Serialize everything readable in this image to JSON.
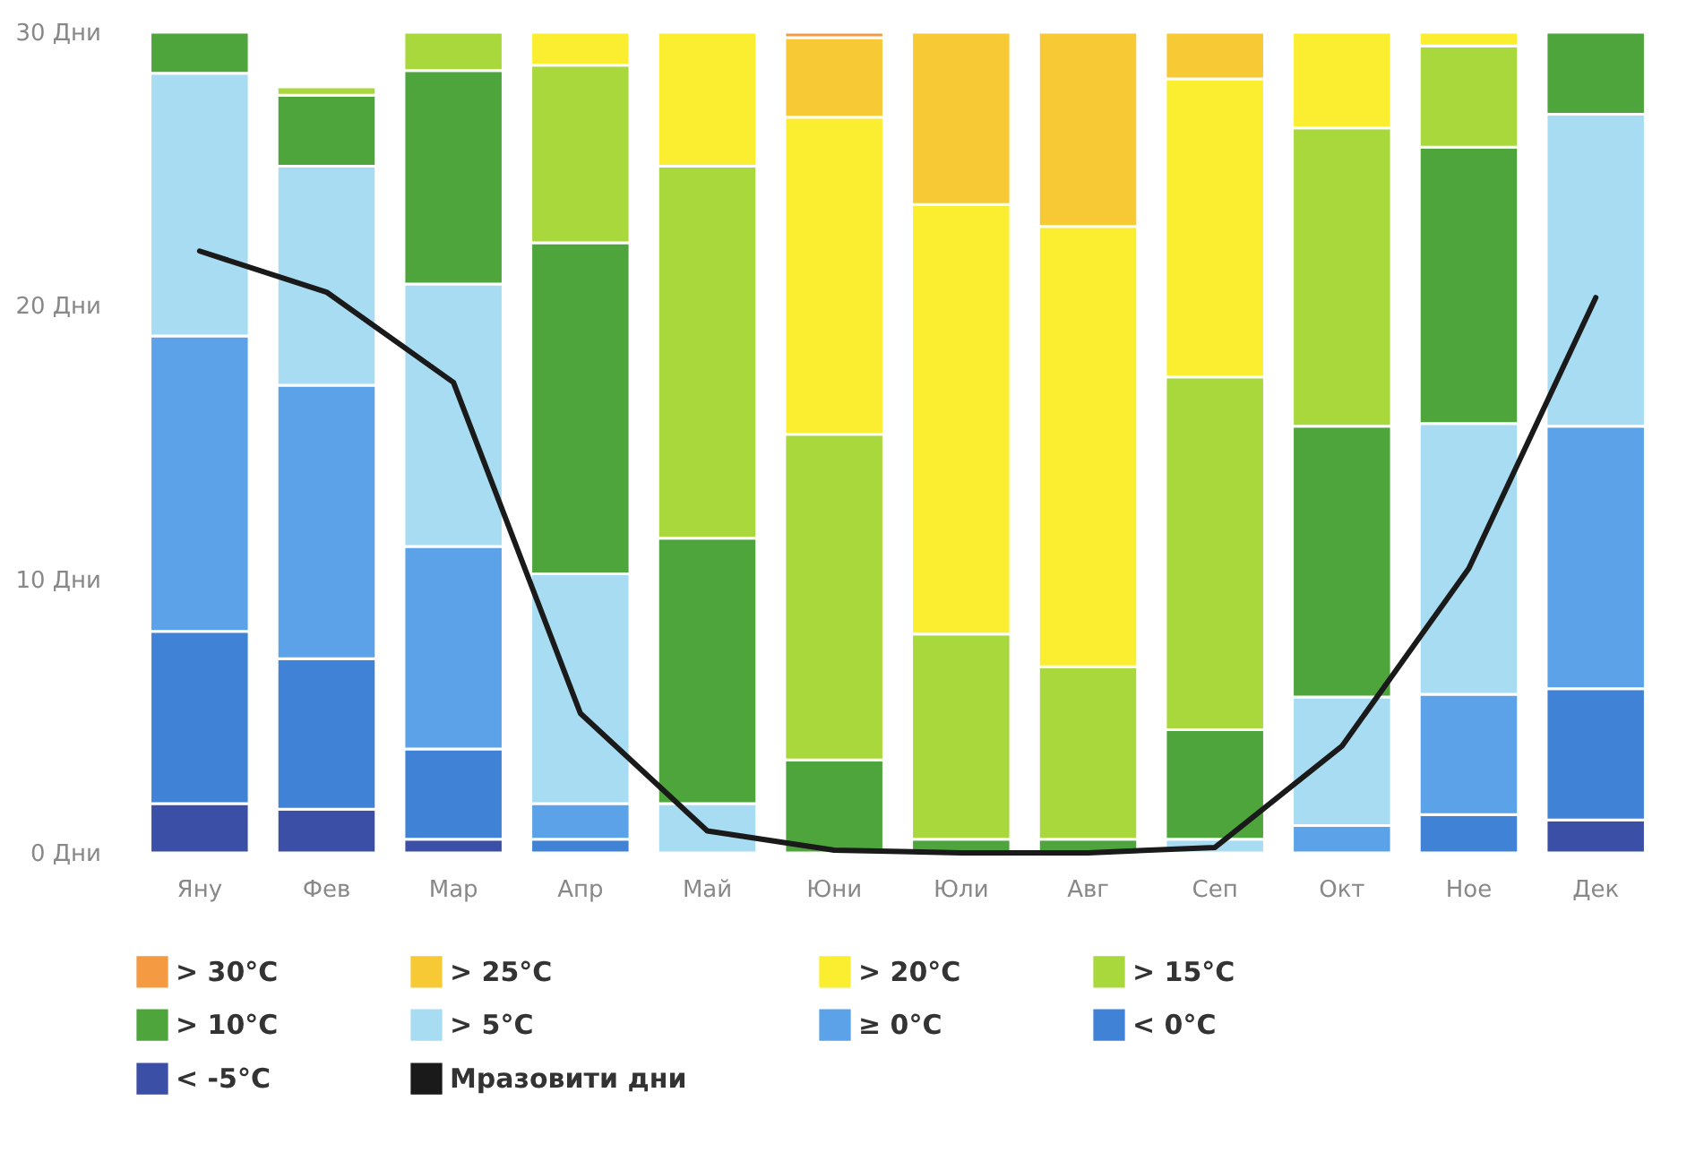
{
  "chart_data": {
    "type": "bar",
    "stacked": true,
    "categories": [
      "Яну",
      "Фев",
      "Мар",
      "Апр",
      "Май",
      "Юни",
      "Юли",
      "Авг",
      "Сеп",
      "Окт",
      "Ное",
      "Дек"
    ],
    "ylim": [
      0,
      30
    ],
    "yticks": [
      {
        "value": 0,
        "label": "0 Дни"
      },
      {
        "value": 10,
        "label": "10 Дни"
      },
      {
        "value": 20,
        "label": "20 Дни"
      },
      {
        "value": 30,
        "label": "30 Дни"
      }
    ],
    "grid": false,
    "legend": "bottom",
    "series": [
      {
        "name": "< -5°C",
        "color": "#3b4fa6",
        "values": [
          1.8,
          1.6,
          0.5,
          null,
          null,
          null,
          null,
          null,
          null,
          null,
          null,
          1.2
        ]
      },
      {
        "name": "< 0°C",
        "color": "#3f82d6",
        "values": [
          6.3,
          5.5,
          3.3,
          0.5,
          null,
          null,
          null,
          null,
          null,
          null,
          1.4,
          4.8
        ]
      },
      {
        "name": "≥ 0°C",
        "color": "#5ba2e8",
        "values": [
          10.8,
          10.0,
          7.4,
          1.3,
          null,
          null,
          null,
          null,
          null,
          1.0,
          4.4,
          9.6
        ]
      },
      {
        "name": "> 5°C",
        "color": "#a8dcf2",
        "values": [
          9.6,
          8.0,
          9.6,
          8.4,
          1.8,
          null,
          null,
          null,
          0.5,
          4.7,
          9.9,
          11.4
        ]
      },
      {
        "name": "> 10°C",
        "color": "#4ea53c",
        "values": [
          1.5,
          2.6,
          7.8,
          12.1,
          9.7,
          3.4,
          0.5,
          0.5,
          4.0,
          9.9,
          10.1,
          3.0
        ]
      },
      {
        "name": "> 15°C",
        "color": "#a8d83c",
        "values": [
          null,
          0.3,
          1.4,
          6.5,
          13.6,
          11.9,
          7.5,
          6.3,
          12.9,
          10.9,
          3.7,
          null
        ]
      },
      {
        "name": "> 20°C",
        "color": "#fbee30",
        "values": [
          null,
          null,
          null,
          1.2,
          4.9,
          11.6,
          15.7,
          16.1,
          10.9,
          3.5,
          0.5,
          null
        ]
      },
      {
        "name": "> 25°C",
        "color": "#f7c935",
        "values": [
          null,
          null,
          null,
          null,
          null,
          2.9,
          6.3,
          7.1,
          1.7,
          null,
          null,
          null
        ]
      },
      {
        "name": "> 30°C",
        "color": "#f39a42",
        "values": [
          null,
          null,
          null,
          null,
          null,
          0.2,
          null,
          null,
          null,
          null,
          null,
          null
        ]
      },
      {
        "name": "Мразовити дни",
        "type": "line",
        "color": "#1a1a1a",
        "values": [
          22.0,
          20.5,
          17.2,
          5.1,
          0.8,
          0.1,
          0,
          0,
          0.2,
          3.9,
          10.4,
          20.3
        ]
      }
    ]
  }
}
